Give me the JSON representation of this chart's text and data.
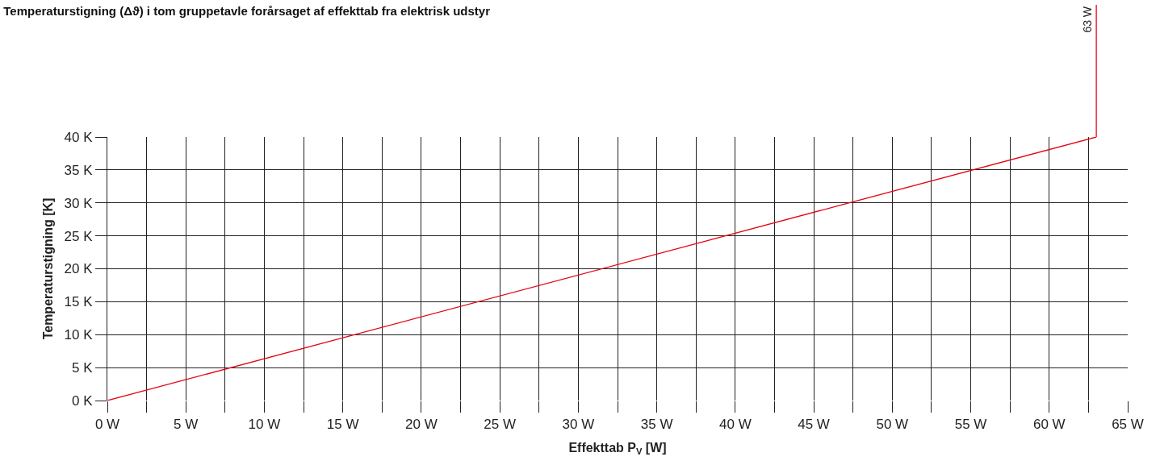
{
  "chart_data": {
    "type": "line",
    "title": "Temperaturstigning (Δϑ) i tom gruppetavle forårsaget af effekttab fra elektrisk udstyr",
    "xlabel": "Effekttab P$_{V}$ [W]",
    "ylabel": "Temperaturstigning [K]",
    "x": [
      0,
      63
    ],
    "series": [
      {
        "color": "#e30613",
        "values": [
          0,
          40
        ]
      }
    ],
    "xlim": [
      0,
      65
    ],
    "ylim": [
      0,
      40
    ],
    "xticks": [
      {
        "value": 0,
        "label": "0 W"
      },
      {
        "value": 2.5,
        "label": null
      },
      {
        "value": 5,
        "label": "5 W"
      },
      {
        "value": 7.5,
        "label": null
      },
      {
        "value": 10,
        "label": "10 W"
      },
      {
        "value": 12.5,
        "label": null
      },
      {
        "value": 15,
        "label": "15 W"
      },
      {
        "value": 17.5,
        "label": null
      },
      {
        "value": 20,
        "label": "20 W"
      },
      {
        "value": 22.5,
        "label": null
      },
      {
        "value": 25,
        "label": "25 W"
      },
      {
        "value": 27.5,
        "label": null
      },
      {
        "value": 30,
        "label": "30 W"
      },
      {
        "value": 32.5,
        "label": null
      },
      {
        "value": 35,
        "label": "35 W"
      },
      {
        "value": 37.5,
        "label": null
      },
      {
        "value": 40,
        "label": "40 W"
      },
      {
        "value": 42.5,
        "label": null
      },
      {
        "value": 45,
        "label": "45 W"
      },
      {
        "value": 47.5,
        "label": null
      },
      {
        "value": 50,
        "label": "50 W"
      },
      {
        "value": 52.5,
        "label": null
      },
      {
        "value": 55,
        "label": "55 W"
      },
      {
        "value": 57.5,
        "label": null
      },
      {
        "value": 60,
        "label": "60 W"
      },
      {
        "value": 62.5,
        "label": null
      },
      {
        "value": 65,
        "label": "65 W"
      }
    ],
    "yticks": [
      {
        "value": 0,
        "label": "0 K"
      },
      {
        "value": 5,
        "label": "5 K"
      },
      {
        "value": 10,
        "label": "10 K"
      },
      {
        "value": 15,
        "label": "15 K"
      },
      {
        "value": 20,
        "label": "20 K"
      },
      {
        "value": 25,
        "label": "25 K"
      },
      {
        "value": 30,
        "label": "30 K"
      },
      {
        "value": 35,
        "label": "35 K"
      },
      {
        "value": 40,
        "label": "40 K"
      }
    ],
    "ref_lines": [
      {
        "axis": "x",
        "value": 63,
        "label": "63 W",
        "color": "#e30613"
      }
    ],
    "grid": true,
    "marker": "none",
    "line_style": "solid"
  }
}
